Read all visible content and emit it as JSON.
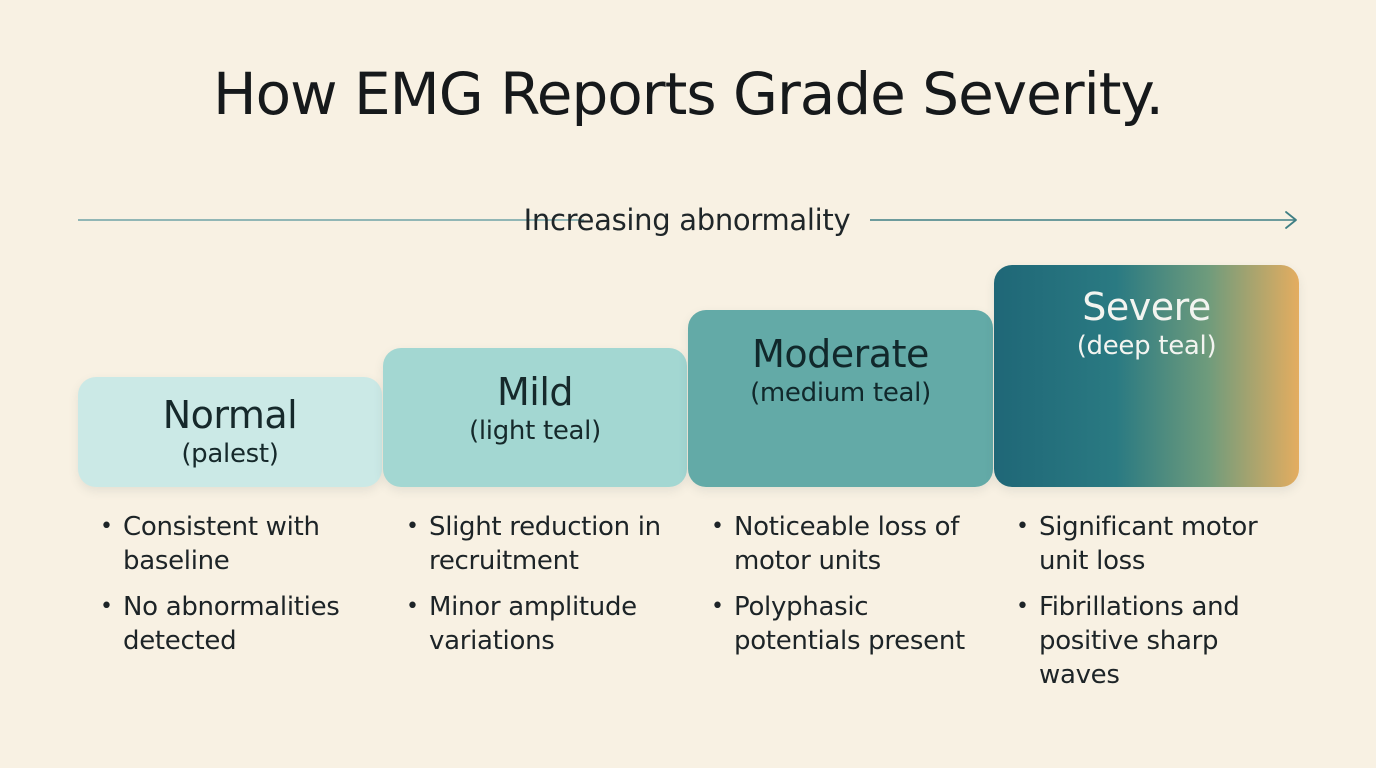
{
  "title": "How EMG Reports Grade Severity.",
  "axis": {
    "label": "Increasing abnormality",
    "color": "#3f7f84"
  },
  "grades": [
    {
      "name": "Normal",
      "note": "(palest)",
      "color": "#cbe9e6",
      "level": 1,
      "bullets": [
        "Consistent with baseline",
        "No abnormalities detected"
      ]
    },
    {
      "name": "Mild",
      "note": "(light teal)",
      "color": "#a3d7d2",
      "level": 2,
      "bullets": [
        "Slight reduction in recruitment",
        "Minor amplitude variations"
      ]
    },
    {
      "name": "Moderate",
      "note": "(medium teal)",
      "color": "#63aaa7",
      "level": 3,
      "bullets": [
        "Noticeable loss of motor units",
        "Polyphasic potentials present"
      ]
    },
    {
      "name": "Severe",
      "note": "(deep teal)",
      "color": "#1f6777",
      "accent_color": "#e4ad60",
      "level": 4,
      "bullets": [
        "Significant motor unit loss",
        "Fibrillations and positive sharp waves"
      ]
    }
  ]
}
